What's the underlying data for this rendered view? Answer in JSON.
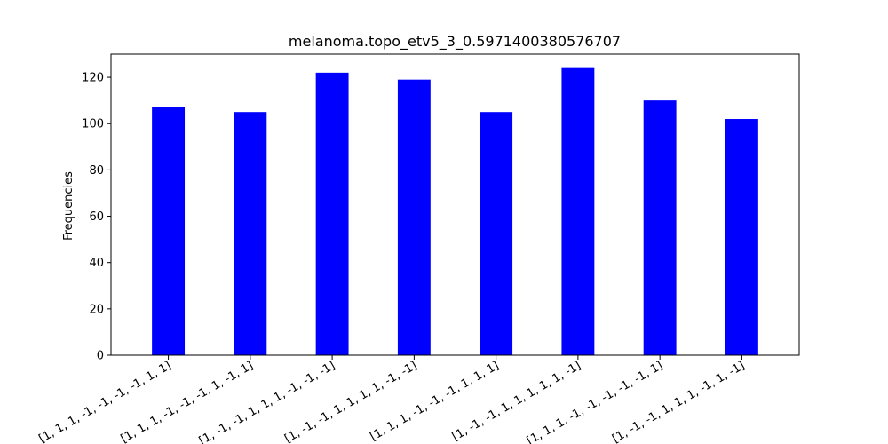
{
  "chart_data": {
    "type": "bar",
    "title": "melanoma.topo_etv5_3_0.5971400380576707",
    "xlabel": "",
    "ylabel": "Frequencies",
    "categories": [
      "[1, 1, 1, -1, -1, -1, -1, 1, 1]",
      "[1, 1, 1, -1, -1, -1, 1, -1, 1]",
      "[1, -1, -1, 1, 1, 1, -1, -1, -1]",
      "[1, -1, -1, 1, 1, 1, 1, -1, -1]",
      "[1, 1, 1, -1, -1, -1, 1, 1, 1]",
      "[1, -1, -1, 1, 1, 1, 1, 1, -1]",
      "[1, 1, 1, -1, -1, -1, -1, -1, 1]",
      "[1, -1, -1, 1, 1, 1, -1, 1, -1]"
    ],
    "values": [
      107,
      105,
      122,
      119,
      105,
      124,
      110,
      102
    ],
    "ylim": [
      0,
      130
    ],
    "yticks": [
      0,
      20,
      40,
      60,
      80,
      100,
      120
    ],
    "bar_color": "#0000ff",
    "grid": false,
    "legend": "none"
  }
}
